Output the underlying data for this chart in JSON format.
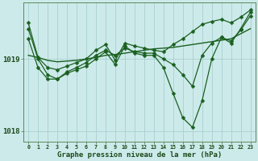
{
  "title": "Graphe pression niveau de la mer (hPa)",
  "xlabel_hours": [
    0,
    1,
    2,
    3,
    4,
    5,
    6,
    7,
    8,
    9,
    10,
    11,
    12,
    13,
    14,
    15,
    16,
    17,
    18,
    19,
    20,
    21,
    22,
    23
  ],
  "ylim": [
    1017.85,
    1019.78
  ],
  "yticks": [
    1018,
    1019
  ],
  "background_color": "#cdeaea",
  "grid_color": "#a8cfcf",
  "line_color": "#1a6020",
  "marker_size": 2.5,
  "series_flat": [
    1019.05,
    1019.02,
    1018.98,
    1018.96,
    1018.97,
    1018.98,
    1019.0,
    1019.02,
    1019.05,
    1019.06,
    1019.08,
    1019.1,
    1019.12,
    1019.14,
    1019.15,
    1019.16,
    1019.18,
    1019.2,
    1019.22,
    1019.24,
    1019.26,
    1019.28,
    1019.35,
    1019.42
  ],
  "series_upper": [
    1019.5,
    1019.02,
    1018.88,
    1018.85,
    1018.9,
    1018.95,
    1019.0,
    1019.12,
    1019.2,
    1018.98,
    1019.22,
    1019.18,
    1019.15,
    1019.12,
    1019.1,
    1019.2,
    1019.28,
    1019.38,
    1019.48,
    1019.52,
    1019.55,
    1019.5,
    1019.58,
    1019.68
  ],
  "series_mid1": [
    1019.28,
    1018.88,
    1018.72,
    1018.72,
    1018.82,
    1018.88,
    1018.95,
    1019.05,
    1019.12,
    1019.05,
    1019.15,
    1019.1,
    1019.08,
    1019.08,
    1019.0,
    1018.92,
    1018.78,
    1018.62,
    1019.05,
    1019.22,
    1019.3,
    1019.25,
    1019.4,
    1019.6
  ],
  "series_deep": [
    1019.42,
    1019.0,
    1018.78,
    1018.72,
    1018.8,
    1018.85,
    1018.9,
    1019.0,
    1019.1,
    1018.92,
    1019.18,
    1019.08,
    1019.05,
    1019.05,
    1018.88,
    1018.52,
    1018.18,
    1018.05,
    1018.42,
    1019.0,
    1019.3,
    1019.22,
    1019.42,
    1019.65
  ]
}
